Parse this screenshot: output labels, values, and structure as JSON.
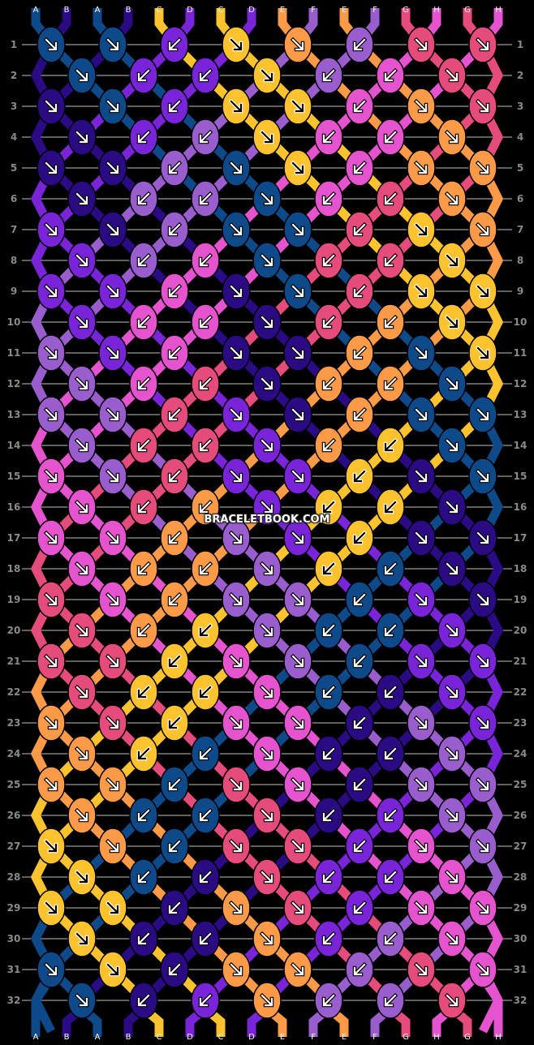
{
  "pattern": {
    "watermark": "BRACELETBOOK.COM",
    "colors": {
      "A": "#0e4a8a",
      "B": "#2a0b84",
      "C": "#fdc32e",
      "D": "#7a24d9",
      "E": "#fc9a47",
      "F": "#995dcd",
      "G": "#e54b7b",
      "H": "#e653cf"
    },
    "arrow_colors": {
      "A": "#ffffff",
      "B": "#ffffff",
      "C": "#000000",
      "D": "#ffffff",
      "E": "#ffffff",
      "F": "#ffffff",
      "G": "#ffffff",
      "H": "#ffffff"
    },
    "strings_top": [
      "A",
      "B",
      "A",
      "B",
      "C",
      "D",
      "C",
      "D",
      "E",
      "F",
      "E",
      "F",
      "G",
      "H",
      "G",
      "H"
    ],
    "strings_bottom": [
      "A",
      "B",
      "A",
      "B",
      "C",
      "D",
      "C",
      "D",
      "E",
      "F",
      "E",
      "F",
      "G",
      "H",
      "G",
      "H"
    ],
    "row_count": 32,
    "rows": [
      {
        "n": 1,
        "knots": [
          [
            "A",
            "f"
          ],
          [
            "A",
            "f"
          ],
          [
            "D",
            "b"
          ],
          [
            "C",
            "f"
          ],
          [
            "E",
            "f"
          ],
          [
            "F",
            "b"
          ],
          [
            "G",
            "f"
          ],
          [
            "G",
            "f"
          ]
        ]
      },
      {
        "n": 2,
        "knots": [
          [
            "A",
            "f"
          ],
          [
            "D",
            "b"
          ],
          [
            "D",
            "b"
          ],
          [
            "C",
            "f"
          ],
          [
            "F",
            "b"
          ],
          [
            "H",
            "b"
          ],
          [
            "G",
            "f"
          ]
        ]
      },
      {
        "n": 3,
        "knots": [
          [
            "B",
            "f"
          ],
          [
            "A",
            "f"
          ],
          [
            "D",
            "b"
          ],
          [
            "C",
            "f"
          ],
          [
            "C",
            "f"
          ],
          [
            "H",
            "b"
          ],
          [
            "E",
            "f"
          ],
          [
            "G",
            "f"
          ]
        ]
      },
      {
        "n": 4,
        "knots": [
          [
            "B",
            "f"
          ],
          [
            "D",
            "b"
          ],
          [
            "F",
            "b"
          ],
          [
            "C",
            "f"
          ],
          [
            "H",
            "b"
          ],
          [
            "H",
            "b"
          ],
          [
            "E",
            "f"
          ]
        ]
      },
      {
        "n": 5,
        "knots": [
          [
            "B",
            "f"
          ],
          [
            "B",
            "f"
          ],
          [
            "F",
            "b"
          ],
          [
            "A",
            "f"
          ],
          [
            "C",
            "f"
          ],
          [
            "H",
            "b"
          ],
          [
            "E",
            "f"
          ],
          [
            "E",
            "f"
          ]
        ]
      },
      {
        "n": 6,
        "knots": [
          [
            "B",
            "f"
          ],
          [
            "F",
            "b"
          ],
          [
            "F",
            "b"
          ],
          [
            "A",
            "f"
          ],
          [
            "H",
            "b"
          ],
          [
            "G",
            "b"
          ],
          [
            "E",
            "f"
          ]
        ]
      },
      {
        "n": 7,
        "knots": [
          [
            "D",
            "f"
          ],
          [
            "B",
            "f"
          ],
          [
            "F",
            "b"
          ],
          [
            "A",
            "f"
          ],
          [
            "A",
            "f"
          ],
          [
            "G",
            "b"
          ],
          [
            "C",
            "f"
          ],
          [
            "E",
            "f"
          ]
        ]
      },
      {
        "n": 8,
        "knots": [
          [
            "D",
            "f"
          ],
          [
            "F",
            "b"
          ],
          [
            "H",
            "b"
          ],
          [
            "A",
            "f"
          ],
          [
            "G",
            "b"
          ],
          [
            "G",
            "b"
          ],
          [
            "C",
            "f"
          ]
        ]
      },
      {
        "n": 9,
        "knots": [
          [
            "D",
            "f"
          ],
          [
            "D",
            "f"
          ],
          [
            "H",
            "b"
          ],
          [
            "B",
            "f"
          ],
          [
            "A",
            "f"
          ],
          [
            "G",
            "b"
          ],
          [
            "C",
            "f"
          ],
          [
            "C",
            "f"
          ]
        ]
      },
      {
        "n": 10,
        "knots": [
          [
            "D",
            "f"
          ],
          [
            "H",
            "b"
          ],
          [
            "H",
            "b"
          ],
          [
            "B",
            "f"
          ],
          [
            "G",
            "b"
          ],
          [
            "E",
            "b"
          ],
          [
            "C",
            "f"
          ]
        ]
      },
      {
        "n": 11,
        "knots": [
          [
            "F",
            "f"
          ],
          [
            "D",
            "f"
          ],
          [
            "H",
            "b"
          ],
          [
            "B",
            "f"
          ],
          [
            "B",
            "f"
          ],
          [
            "E",
            "b"
          ],
          [
            "A",
            "f"
          ],
          [
            "C",
            "f"
          ]
        ]
      },
      {
        "n": 12,
        "knots": [
          [
            "F",
            "f"
          ],
          [
            "H",
            "b"
          ],
          [
            "G",
            "b"
          ],
          [
            "B",
            "f"
          ],
          [
            "E",
            "b"
          ],
          [
            "E",
            "b"
          ],
          [
            "A",
            "f"
          ]
        ]
      },
      {
        "n": 13,
        "knots": [
          [
            "F",
            "f"
          ],
          [
            "F",
            "f"
          ],
          [
            "G",
            "b"
          ],
          [
            "D",
            "f"
          ],
          [
            "B",
            "f"
          ],
          [
            "E",
            "b"
          ],
          [
            "A",
            "f"
          ],
          [
            "A",
            "f"
          ]
        ]
      },
      {
        "n": 14,
        "knots": [
          [
            "F",
            "f"
          ],
          [
            "G",
            "b"
          ],
          [
            "G",
            "b"
          ],
          [
            "D",
            "f"
          ],
          [
            "E",
            "b"
          ],
          [
            "C",
            "b"
          ],
          [
            "A",
            "f"
          ]
        ]
      },
      {
        "n": 15,
        "knots": [
          [
            "H",
            "f"
          ],
          [
            "F",
            "f"
          ],
          [
            "G",
            "b"
          ],
          [
            "D",
            "f"
          ],
          [
            "D",
            "f"
          ],
          [
            "C",
            "b"
          ],
          [
            "B",
            "f"
          ],
          [
            "A",
            "f"
          ]
        ]
      },
      {
        "n": 16,
        "knots": [
          [
            "H",
            "f"
          ],
          [
            "G",
            "b"
          ],
          [
            "E",
            "b"
          ],
          [
            "D",
            "f"
          ],
          [
            "C",
            "b"
          ],
          [
            "C",
            "b"
          ],
          [
            "B",
            "f"
          ]
        ]
      },
      {
        "n": 17,
        "knots": [
          [
            "H",
            "f"
          ],
          [
            "H",
            "f"
          ],
          [
            "E",
            "b"
          ],
          [
            "F",
            "f"
          ],
          [
            "D",
            "f"
          ],
          [
            "C",
            "b"
          ],
          [
            "B",
            "f"
          ],
          [
            "B",
            "f"
          ]
        ]
      },
      {
        "n": 18,
        "knots": [
          [
            "H",
            "f"
          ],
          [
            "E",
            "b"
          ],
          [
            "E",
            "b"
          ],
          [
            "F",
            "f"
          ],
          [
            "C",
            "b"
          ],
          [
            "A",
            "b"
          ],
          [
            "B",
            "f"
          ]
        ]
      },
      {
        "n": 19,
        "knots": [
          [
            "G",
            "f"
          ],
          [
            "H",
            "f"
          ],
          [
            "E",
            "b"
          ],
          [
            "F",
            "f"
          ],
          [
            "F",
            "f"
          ],
          [
            "A",
            "b"
          ],
          [
            "D",
            "f"
          ],
          [
            "B",
            "f"
          ]
        ]
      },
      {
        "n": 20,
        "knots": [
          [
            "G",
            "f"
          ],
          [
            "E",
            "b"
          ],
          [
            "C",
            "b"
          ],
          [
            "F",
            "f"
          ],
          [
            "A",
            "b"
          ],
          [
            "A",
            "b"
          ],
          [
            "D",
            "f"
          ]
        ]
      },
      {
        "n": 21,
        "knots": [
          [
            "G",
            "f"
          ],
          [
            "G",
            "f"
          ],
          [
            "C",
            "b"
          ],
          [
            "H",
            "f"
          ],
          [
            "F",
            "f"
          ],
          [
            "A",
            "b"
          ],
          [
            "D",
            "f"
          ],
          [
            "D",
            "f"
          ]
        ]
      },
      {
        "n": 22,
        "knots": [
          [
            "G",
            "f"
          ],
          [
            "C",
            "b"
          ],
          [
            "C",
            "b"
          ],
          [
            "H",
            "f"
          ],
          [
            "A",
            "b"
          ],
          [
            "B",
            "b"
          ],
          [
            "D",
            "f"
          ]
        ]
      },
      {
        "n": 23,
        "knots": [
          [
            "E",
            "f"
          ],
          [
            "G",
            "f"
          ],
          [
            "C",
            "b"
          ],
          [
            "H",
            "f"
          ],
          [
            "H",
            "f"
          ],
          [
            "B",
            "b"
          ],
          [
            "F",
            "f"
          ],
          [
            "D",
            "f"
          ]
        ]
      },
      {
        "n": 24,
        "knots": [
          [
            "E",
            "f"
          ],
          [
            "C",
            "b"
          ],
          [
            "A",
            "b"
          ],
          [
            "H",
            "f"
          ],
          [
            "B",
            "b"
          ],
          [
            "B",
            "b"
          ],
          [
            "F",
            "f"
          ]
        ]
      },
      {
        "n": 25,
        "knots": [
          [
            "E",
            "f"
          ],
          [
            "E",
            "f"
          ],
          [
            "A",
            "b"
          ],
          [
            "G",
            "f"
          ],
          [
            "H",
            "f"
          ],
          [
            "B",
            "b"
          ],
          [
            "F",
            "f"
          ],
          [
            "F",
            "f"
          ]
        ]
      },
      {
        "n": 26,
        "knots": [
          [
            "E",
            "f"
          ],
          [
            "A",
            "b"
          ],
          [
            "A",
            "b"
          ],
          [
            "G",
            "f"
          ],
          [
            "B",
            "b"
          ],
          [
            "D",
            "b"
          ],
          [
            "F",
            "f"
          ]
        ]
      },
      {
        "n": 27,
        "knots": [
          [
            "C",
            "f"
          ],
          [
            "E",
            "f"
          ],
          [
            "A",
            "b"
          ],
          [
            "G",
            "f"
          ],
          [
            "G",
            "f"
          ],
          [
            "D",
            "b"
          ],
          [
            "H",
            "f"
          ],
          [
            "F",
            "f"
          ]
        ]
      },
      {
        "n": 28,
        "knots": [
          [
            "C",
            "f"
          ],
          [
            "A",
            "b"
          ],
          [
            "B",
            "b"
          ],
          [
            "G",
            "f"
          ],
          [
            "D",
            "b"
          ],
          [
            "D",
            "b"
          ],
          [
            "H",
            "f"
          ]
        ]
      },
      {
        "n": 29,
        "knots": [
          [
            "C",
            "f"
          ],
          [
            "C",
            "f"
          ],
          [
            "B",
            "b"
          ],
          [
            "E",
            "f"
          ],
          [
            "G",
            "f"
          ],
          [
            "D",
            "b"
          ],
          [
            "H",
            "f"
          ],
          [
            "H",
            "f"
          ]
        ]
      },
      {
        "n": 30,
        "knots": [
          [
            "C",
            "f"
          ],
          [
            "B",
            "b"
          ],
          [
            "B",
            "b"
          ],
          [
            "E",
            "f"
          ],
          [
            "D",
            "b"
          ],
          [
            "F",
            "b"
          ],
          [
            "H",
            "f"
          ]
        ]
      },
      {
        "n": 31,
        "knots": [
          [
            "A",
            "f"
          ],
          [
            "C",
            "f"
          ],
          [
            "B",
            "b"
          ],
          [
            "E",
            "f"
          ],
          [
            "E",
            "f"
          ],
          [
            "F",
            "b"
          ],
          [
            "G",
            "f"
          ],
          [
            "H",
            "f"
          ]
        ]
      },
      {
        "n": 32,
        "knots": [
          [
            "A",
            "f"
          ],
          [
            "B",
            "b"
          ],
          [
            "D",
            "b"
          ],
          [
            "E",
            "f"
          ],
          [
            "F",
            "b"
          ],
          [
            "F",
            "b"
          ],
          [
            "G",
            "f"
          ]
        ]
      }
    ],
    "legend": {
      "f": "forward knot (arrow down-right)",
      "b": "backward knot (arrow down-left)"
    }
  }
}
